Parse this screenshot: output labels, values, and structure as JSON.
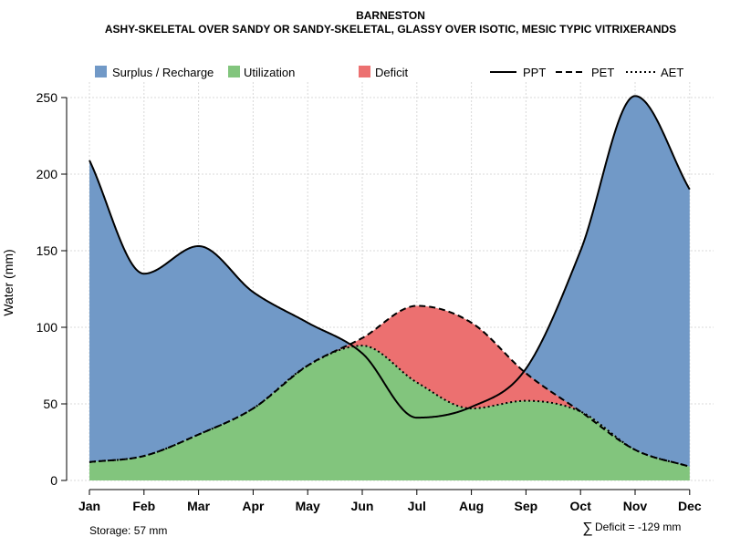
{
  "chart_data": {
    "type": "area",
    "title": "BARNESTON",
    "subtitle": "ASHY-SKELETAL OVER SANDY OR SANDY-SKELETAL, GLASSY OVER ISOTIC, MESIC TYPIC VITRIXERANDS",
    "xlabel": "",
    "ylabel": "Water (mm)",
    "ylim": [
      0,
      260
    ],
    "yticks": [
      0,
      50,
      100,
      150,
      200,
      250
    ],
    "grid": true,
    "categories": [
      "Jan",
      "Feb",
      "Mar",
      "Apr",
      "May",
      "Jun",
      "Jul",
      "Aug",
      "Sep",
      "Oct",
      "Nov",
      "Dec"
    ],
    "series": [
      {
        "name": "PPT",
        "style": "solid",
        "values": [
          209,
          135,
          153,
          123,
          103,
          83,
          41,
          48,
          73,
          150,
          251,
          190
        ]
      },
      {
        "name": "PET",
        "style": "dashed",
        "values": [
          12,
          16,
          30,
          47,
          75,
          93,
          114,
          103,
          70,
          45,
          20,
          9
        ]
      },
      {
        "name": "AET",
        "style": "dotted",
        "values": [
          12,
          16,
          30,
          47,
          75,
          88,
          64,
          47,
          52,
          45,
          20,
          9
        ]
      }
    ],
    "legend": {
      "fills": [
        {
          "label": "Surplus / Recharge",
          "color": "#7199c7"
        },
        {
          "label": "Utilization",
          "color": "#82c57d"
        },
        {
          "label": "Deficit",
          "color": "#ec7070"
        }
      ],
      "lines": [
        {
          "label": "PPT",
          "style": "solid"
        },
        {
          "label": "PET",
          "style": "dashed"
        },
        {
          "label": "AET",
          "style": "dotted"
        }
      ]
    },
    "annotations": {
      "storage": "Storage: 57 mm",
      "deficit_symbol": "∑",
      "deficit": "Deficit = -129 mm"
    }
  }
}
